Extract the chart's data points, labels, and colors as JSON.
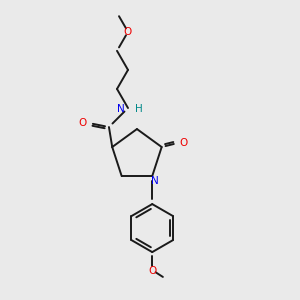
{
  "bg_color": "#eaeaea",
  "bond_color": "#1a1a1a",
  "N_color": "#0000ee",
  "O_color": "#ee0000",
  "H_color": "#008888",
  "line_width": 1.4,
  "fig_size": [
    3.0,
    3.0
  ],
  "dpi": 100,
  "fontsize": 7.5,
  "top_O_label": "O",
  "NH_label": "N",
  "H_label": "H",
  "amide_O_label": "O",
  "ring_N_label": "N",
  "ketone_O_label": "O",
  "bottom_O_label": "O"
}
